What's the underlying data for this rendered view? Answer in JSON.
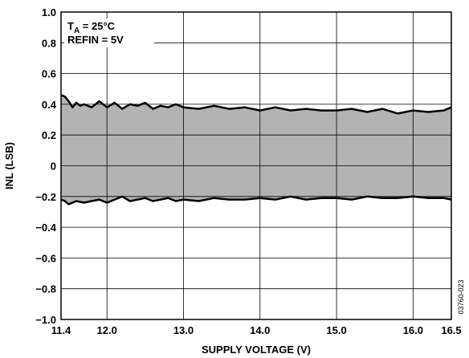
{
  "chart_data": {
    "type": "area",
    "xlabel": "SUPPLY VOLTAGE (V)",
    "ylabel": "INL (LSB)",
    "xlim": [
      11.4,
      16.5
    ],
    "ylim": [
      -1.0,
      1.0
    ],
    "grid": true,
    "x_ticks": [
      11.4,
      12.0,
      13.0,
      14.0,
      15.0,
      16.0,
      16.5
    ],
    "x_tick_labels": [
      "11.4",
      "12.0",
      "13.0",
      "14.0",
      "15.0",
      "16.0",
      "16.5"
    ],
    "y_ticks": [
      1.0,
      0.8,
      0.6,
      0.4,
      0.2,
      0,
      -0.2,
      -0.4,
      -0.6,
      -0.8,
      -1.0
    ],
    "y_tick_labels": [
      "1.0",
      "0.8",
      "0.6",
      "0.4",
      "0.2",
      "0",
      "−0.2",
      "−0.4",
      "−0.6",
      "−0.8",
      "−1.0"
    ],
    "fill_color": "#b3b3b3",
    "annotations": {
      "ta_main": "T",
      "ta_sub": "A",
      "ta_rest": " = 25°C",
      "refin": "REFIN = 5V"
    },
    "figure_id": "03760-023",
    "series": [
      {
        "x": [
          11.4,
          11.45,
          11.5,
          11.55,
          11.6,
          11.65,
          11.7,
          11.8,
          11.9,
          12.0,
          12.1,
          12.2,
          12.3,
          12.4,
          12.5,
          12.6,
          12.7,
          12.8,
          12.9,
          13.0,
          13.2,
          13.4,
          13.6,
          13.8,
          14.0,
          14.2,
          14.4,
          14.6,
          14.8,
          15.0,
          15.2,
          15.4,
          15.6,
          15.8,
          16.0,
          16.2,
          16.4,
          16.5
        ],
        "values": [
          0.46,
          0.45,
          0.42,
          0.38,
          0.41,
          0.39,
          0.4,
          0.38,
          0.42,
          0.38,
          0.41,
          0.37,
          0.4,
          0.39,
          0.41,
          0.37,
          0.39,
          0.38,
          0.4,
          0.38,
          0.37,
          0.39,
          0.37,
          0.38,
          0.36,
          0.38,
          0.36,
          0.37,
          0.36,
          0.36,
          0.37,
          0.35,
          0.37,
          0.34,
          0.36,
          0.35,
          0.36,
          0.38
        ]
      },
      {
        "x": [
          11.4,
          11.45,
          11.5,
          11.55,
          11.6,
          11.7,
          11.8,
          11.9,
          12.0,
          12.1,
          12.2,
          12.3,
          12.4,
          12.5,
          12.6,
          12.7,
          12.8,
          12.9,
          13.0,
          13.2,
          13.4,
          13.6,
          13.8,
          14.0,
          14.2,
          14.4,
          14.6,
          14.8,
          15.0,
          15.2,
          15.4,
          15.6,
          15.8,
          16.0,
          16.2,
          16.4,
          16.5
        ],
        "values": [
          -0.22,
          -0.23,
          -0.25,
          -0.24,
          -0.23,
          -0.24,
          -0.23,
          -0.22,
          -0.24,
          -0.22,
          -0.2,
          -0.23,
          -0.22,
          -0.21,
          -0.23,
          -0.22,
          -0.21,
          -0.23,
          -0.22,
          -0.23,
          -0.21,
          -0.22,
          -0.22,
          -0.21,
          -0.22,
          -0.2,
          -0.22,
          -0.21,
          -0.21,
          -0.22,
          -0.2,
          -0.21,
          -0.21,
          -0.2,
          -0.21,
          -0.21,
          -0.22
        ]
      }
    ]
  }
}
